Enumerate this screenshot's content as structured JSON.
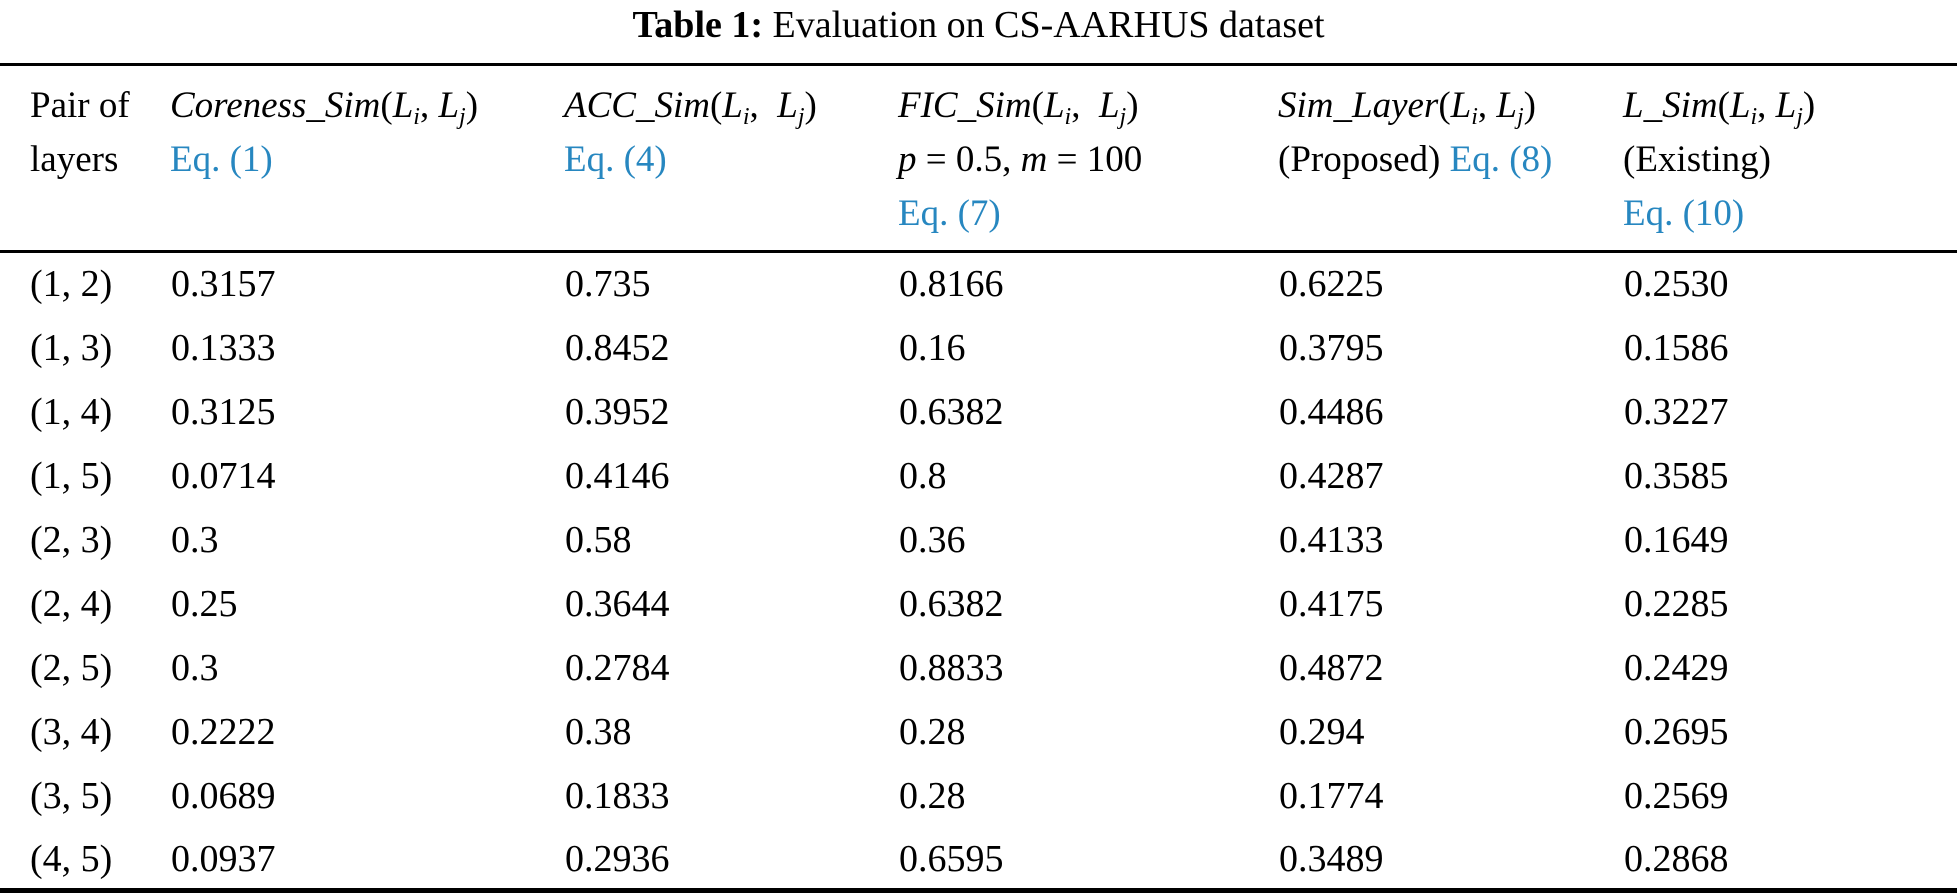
{
  "caption": {
    "label": "Table 1:",
    "text": " Evaluation on CS-AARHUS dataset"
  },
  "colors": {
    "link_blue": "#2787c0",
    "text": "#000000",
    "background": "#ffffff"
  },
  "header": {
    "columns": [
      {
        "id": "pair-of-layers",
        "lines": [
          [
            {
              "t": "Pair of",
              "s": "plain"
            }
          ],
          [
            {
              "t": "layers",
              "s": "plain"
            }
          ]
        ]
      },
      {
        "id": "coreness-sim",
        "lines": [
          [
            {
              "t": "Coreness_Sim",
              "s": "func"
            },
            {
              "t": "(",
              "s": "plain"
            },
            {
              "t": "L",
              "s": "func"
            },
            {
              "t": "i",
              "s": "sub"
            },
            {
              "t": ", ",
              "s": "plain"
            },
            {
              "t": "L",
              "s": "func"
            },
            {
              "t": "j",
              "s": "sub"
            },
            {
              "t": ")",
              "s": "plain"
            }
          ],
          [
            {
              "t": "Eq. (1)",
              "s": "link"
            }
          ]
        ]
      },
      {
        "id": "acc-sim",
        "lines": [
          [
            {
              "t": "ACC_Sim",
              "s": "func"
            },
            {
              "t": "(",
              "s": "plain"
            },
            {
              "t": "L",
              "s": "func"
            },
            {
              "t": "i",
              "s": "sub"
            },
            {
              "t": ",  ",
              "s": "plain"
            },
            {
              "t": "L",
              "s": "func"
            },
            {
              "t": "j",
              "s": "sub"
            },
            {
              "t": ")",
              "s": "plain"
            }
          ],
          [
            {
              "t": "Eq. (4)",
              "s": "link"
            }
          ]
        ]
      },
      {
        "id": "fic-sim",
        "lines": [
          [
            {
              "t": "FIC_Sim",
              "s": "func"
            },
            {
              "t": "(",
              "s": "plain"
            },
            {
              "t": "L",
              "s": "func"
            },
            {
              "t": "i",
              "s": "sub"
            },
            {
              "t": ",  ",
              "s": "plain"
            },
            {
              "t": "L",
              "s": "func"
            },
            {
              "t": "j",
              "s": "sub"
            },
            {
              "t": ")",
              "s": "plain"
            }
          ],
          [
            {
              "t": "p",
              "s": "func"
            },
            {
              "t": " = 0.5, ",
              "s": "plain"
            },
            {
              "t": "m",
              "s": "func"
            },
            {
              "t": " = 100",
              "s": "plain"
            }
          ],
          [
            {
              "t": "Eq. (7)",
              "s": "link"
            }
          ]
        ]
      },
      {
        "id": "sim-layer",
        "lines": [
          [
            {
              "t": "Sim_Layer",
              "s": "func"
            },
            {
              "t": "(",
              "s": "plain"
            },
            {
              "t": "L",
              "s": "func"
            },
            {
              "t": "i",
              "s": "sub"
            },
            {
              "t": ", ",
              "s": "plain"
            },
            {
              "t": "L",
              "s": "func"
            },
            {
              "t": "j",
              "s": "sub"
            },
            {
              "t": ")",
              "s": "plain"
            }
          ],
          [
            {
              "t": "(Proposed) ",
              "s": "plain"
            },
            {
              "t": "Eq. (8)",
              "s": "link"
            }
          ]
        ]
      },
      {
        "id": "l-sim",
        "lines": [
          [
            {
              "t": "L_Sim",
              "s": "func"
            },
            {
              "t": "(",
              "s": "plain"
            },
            {
              "t": "L",
              "s": "func"
            },
            {
              "t": "i",
              "s": "sub"
            },
            {
              "t": ", ",
              "s": "plain"
            },
            {
              "t": "L",
              "s": "func"
            },
            {
              "t": "j",
              "s": "sub"
            },
            {
              "t": ")",
              "s": "plain"
            }
          ],
          [
            {
              "t": "(Existing)",
              "s": "plain"
            }
          ],
          [
            {
              "t": "Eq. (10)",
              "s": "link"
            }
          ]
        ]
      }
    ]
  },
  "rows": [
    {
      "pair": "(1, 2)",
      "values": [
        "0.3157",
        "0.735",
        "0.8166",
        "0.6225",
        "0.2530"
      ]
    },
    {
      "pair": "(1, 3)",
      "values": [
        "0.1333",
        "0.8452",
        "0.16",
        "0.3795",
        "0.1586"
      ]
    },
    {
      "pair": "(1, 4)",
      "values": [
        "0.3125",
        "0.3952",
        "0.6382",
        "0.4486",
        "0.3227"
      ]
    },
    {
      "pair": "(1, 5)",
      "values": [
        "0.0714",
        "0.4146",
        "0.8",
        "0.4287",
        "0.3585"
      ]
    },
    {
      "pair": "(2, 3)",
      "values": [
        "0.3",
        "0.58",
        "0.36",
        "0.4133",
        "0.1649"
      ]
    },
    {
      "pair": "(2, 4)",
      "values": [
        "0.25",
        "0.3644",
        "0.6382",
        "0.4175",
        "0.2285"
      ]
    },
    {
      "pair": "(2, 5)",
      "values": [
        "0.3",
        "0.2784",
        "0.8833",
        "0.4872",
        "0.2429"
      ]
    },
    {
      "pair": "(3, 4)",
      "values": [
        "0.2222",
        "0.38",
        "0.28",
        "0.294",
        "0.2695"
      ]
    },
    {
      "pair": "(3, 5)",
      "values": [
        "0.0689",
        "0.1833",
        "0.28",
        "0.1774",
        "0.2569"
      ]
    },
    {
      "pair": "(4, 5)",
      "values": [
        "0.0937",
        "0.2936",
        "0.6595",
        "0.3489",
        "0.2868"
      ]
    }
  ],
  "chart_data": {
    "type": "table",
    "title": "Table 1: Evaluation on CS-AARHUS dataset",
    "columns": [
      "Pair of layers",
      "Coreness_Sim(Li, Lj) Eq. (1)",
      "ACC_Sim(Li, Lj) Eq. (4)",
      "FIC_Sim(Li, Lj) p = 0.5, m = 100 Eq. (7)",
      "Sim_Layer(Li, Lj) (Proposed) Eq. (8)",
      "L_Sim(Li, Lj) (Existing) Eq. (10)"
    ],
    "rows": [
      [
        "(1, 2)",
        0.3157,
        0.735,
        0.8166,
        0.6225,
        0.253
      ],
      [
        "(1, 3)",
        0.1333,
        0.8452,
        0.16,
        0.3795,
        0.1586
      ],
      [
        "(1, 4)",
        0.3125,
        0.3952,
        0.6382,
        0.4486,
        0.3227
      ],
      [
        "(1, 5)",
        0.0714,
        0.4146,
        0.8,
        0.4287,
        0.3585
      ],
      [
        "(2, 3)",
        0.3,
        0.58,
        0.36,
        0.4133,
        0.1649
      ],
      [
        "(2, 4)",
        0.25,
        0.3644,
        0.6382,
        0.4175,
        0.2285
      ],
      [
        "(2, 5)",
        0.3,
        0.2784,
        0.8833,
        0.4872,
        0.2429
      ],
      [
        "(3, 4)",
        0.2222,
        0.38,
        0.28,
        0.294,
        0.2695
      ],
      [
        "(3, 5)",
        0.0689,
        0.1833,
        0.28,
        0.1774,
        0.2569
      ],
      [
        "(4, 5)",
        0.0937,
        0.2936,
        0.6595,
        0.3489,
        0.2868
      ]
    ]
  }
}
